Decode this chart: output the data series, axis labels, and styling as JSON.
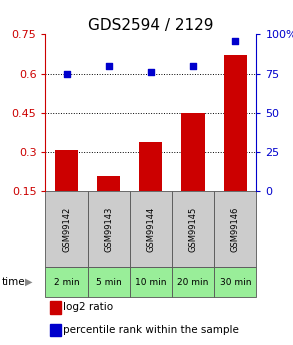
{
  "title": "GDS2594 / 2129",
  "categories": [
    "GSM99142",
    "GSM99143",
    "GSM99144",
    "GSM99145",
    "GSM99146"
  ],
  "time_labels": [
    "2 min",
    "5 min",
    "10 min",
    "20 min",
    "30 min"
  ],
  "log2_values": [
    0.31,
    0.21,
    0.34,
    0.45,
    0.67
  ],
  "percentile_values": [
    75,
    80,
    76,
    80,
    96
  ],
  "bar_color": "#cc0000",
  "dot_color": "#0000cc",
  "left_yticks": [
    0.15,
    0.3,
    0.45,
    0.6,
    0.75
  ],
  "right_yticks": [
    0,
    25,
    50,
    75,
    100
  ],
  "right_ytick_labels": [
    "0",
    "25",
    "50",
    "75",
    "100%"
  ],
  "ylim_left": [
    0.15,
    0.75
  ],
  "ylim_right": [
    0,
    100
  ],
  "grid_lines": [
    0.3,
    0.45,
    0.6
  ],
  "bar_width": 0.55,
  "gsm_bg": "#cccccc",
  "time_bg": "#99ee99",
  "title_fontsize": 11,
  "tick_fontsize": 8,
  "label_fontsize": 8,
  "legend_fontsize": 7.5
}
